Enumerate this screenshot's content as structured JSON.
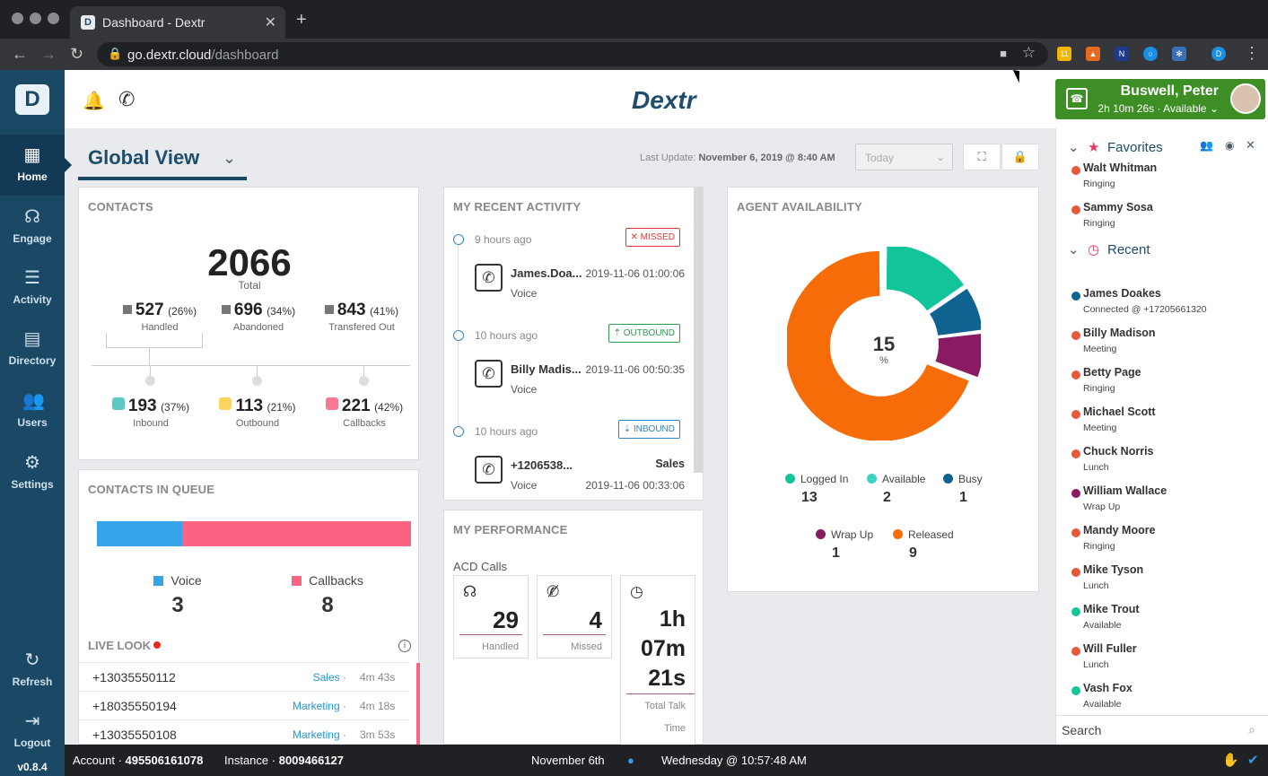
{
  "browser": {
    "tab_title": "Dashboard - Dextr",
    "tab_close": "✕",
    "new_tab": "+",
    "url_host": "go.dextr.cloud",
    "url_path": "/dashboard",
    "ext_badge": "11"
  },
  "sidebar": {
    "items": [
      {
        "label": "Home"
      },
      {
        "label": "Engage"
      },
      {
        "label": "Activity"
      },
      {
        "label": "Directory"
      },
      {
        "label": "Users"
      },
      {
        "label": "Settings"
      }
    ],
    "refresh": "Refresh",
    "logout": "Logout",
    "version": "v0.8.4"
  },
  "header": {
    "brand": "Dextr",
    "user_name": "Buswell, Peter",
    "user_status": "2h 10m 26s · Available"
  },
  "toolbar": {
    "view_title": "Global View",
    "last_update_label": "Last Update:",
    "last_update_value": "November 6, 2019 @ 8:40 AM",
    "range": "Today"
  },
  "contacts": {
    "title": "CONTACTS",
    "total": "2066",
    "total_label": "Total",
    "handled": {
      "value": "527",
      "pct": "(26%)",
      "label": "Handled"
    },
    "abandoned": {
      "value": "696",
      "pct": "(34%)",
      "label": "Abandoned"
    },
    "transferred": {
      "value": "843",
      "pct": "(41%)",
      "label": "Transfered Out"
    },
    "inbound": {
      "value": "193",
      "pct": "(37%)",
      "label": "Inbound"
    },
    "outbound": {
      "value": "113",
      "pct": "(21%)",
      "label": "Outbound"
    },
    "callbacks": {
      "value": "221",
      "pct": "(42%)",
      "label": "Callbacks"
    }
  },
  "queue": {
    "title": "CONTACTS IN QUEUE",
    "voice_label": "Voice",
    "voice_count": "3",
    "callbacks_label": "Callbacks",
    "callbacks_count": "8",
    "voice_share": 0.27
  },
  "live_look": {
    "title": "LIVE LOOK",
    "info": "i",
    "rows": [
      {
        "number": "+13035550112",
        "queue": "Sales",
        "time": "4m 43s"
      },
      {
        "number": "+18035550194",
        "queue": "Marketing",
        "time": "4m 18s"
      },
      {
        "number": "+13035550108",
        "queue": "Marketing",
        "time": "3m 53s"
      }
    ]
  },
  "activity": {
    "title": "MY RECENT ACTIVITY",
    "items": [
      {
        "ago": "9 hours ago",
        "badge": "✕ MISSED",
        "who": "James.Doa...",
        "date": "2019-11-06 01:00:06",
        "queue": "",
        "kind": "Voice"
      },
      {
        "ago": "10 hours ago",
        "badge": "⇡ OUTBOUND",
        "who": "Billy Madis...",
        "date": "2019-11-06 00:50:35",
        "queue": "",
        "kind": "Voice"
      },
      {
        "ago": "10 hours ago",
        "badge": "⇣ INBOUND",
        "who": "+1206538...",
        "date": "2019-11-06 00:33:06",
        "queue": "Sales",
        "kind": "Voice"
      }
    ]
  },
  "performance": {
    "title": "MY PERFORMANCE",
    "acd_label": "ACD Calls",
    "handled": {
      "value": "29",
      "label": "Handled"
    },
    "missed": {
      "value": "4",
      "label": "Missed"
    },
    "talk": {
      "h": "1h",
      "m": "07m",
      "s": "21s",
      "label1": "Total Talk",
      "label2": "Time"
    }
  },
  "agent": {
    "title": "AGENT AVAILABILITY",
    "center_value": "15",
    "center_unit": "%",
    "legend": [
      {
        "label": "Logged In",
        "count": "13",
        "color": "#13c39a"
      },
      {
        "label": "Available",
        "count": "2",
        "color": "#3fd3c8"
      },
      {
        "label": "Busy",
        "count": "1",
        "color": "#0f6391"
      },
      {
        "label": "Wrap Up",
        "count": "1",
        "color": "#8a1a62"
      },
      {
        "label": "Released",
        "count": "9",
        "color": "#f56c09"
      }
    ],
    "donut": [
      {
        "name": "Available",
        "value": 2,
        "color": "#13c39a"
      },
      {
        "name": "Busy",
        "value": 1,
        "color": "#0f6391"
      },
      {
        "name": "Wrap Up",
        "value": 1,
        "color": "#8a1a62"
      },
      {
        "name": "Released",
        "value": 9,
        "color": "#f56c09"
      }
    ]
  },
  "panel": {
    "favorites_title": "Favorites",
    "recent_title": "Recent",
    "favorites": [
      {
        "name": "Walt Whitman",
        "status": "Ringing",
        "color": "#e8583a"
      },
      {
        "name": "Sammy Sosa",
        "status": "Ringing",
        "color": "#e8583a"
      }
    ],
    "recent": [
      {
        "name": "James Doakes",
        "status": "Connected @ +17205661320",
        "color": "#0f6391"
      },
      {
        "name": "Billy Madison",
        "status": "Meeting",
        "color": "#e8583a"
      },
      {
        "name": "Betty Page",
        "status": "Ringing",
        "color": "#e8583a"
      },
      {
        "name": "Michael Scott",
        "status": "Meeting",
        "color": "#e8583a"
      },
      {
        "name": "Chuck Norris",
        "status": "Lunch",
        "color": "#e8583a"
      },
      {
        "name": "William Wallace",
        "status": "Wrap Up",
        "color": "#8a1a62"
      },
      {
        "name": "Mandy Moore",
        "status": "Ringing",
        "color": "#e8583a"
      },
      {
        "name": "Mike Tyson",
        "status": "Lunch",
        "color": "#e8583a"
      },
      {
        "name": "Mike Trout",
        "status": "Available",
        "color": "#13c39a"
      },
      {
        "name": "Will Fuller",
        "status": "Lunch",
        "color": "#e8583a"
      },
      {
        "name": "Vash Fox",
        "status": "Available",
        "color": "#13c39a"
      }
    ],
    "search_placeholder": "Search"
  },
  "footer": {
    "account_label": "Account ·",
    "account": "495506161078",
    "instance_label": "Instance ·",
    "instance": "8009466127",
    "date": "November 6th",
    "clock": "Wednesday @ 10:57:48 AM"
  }
}
